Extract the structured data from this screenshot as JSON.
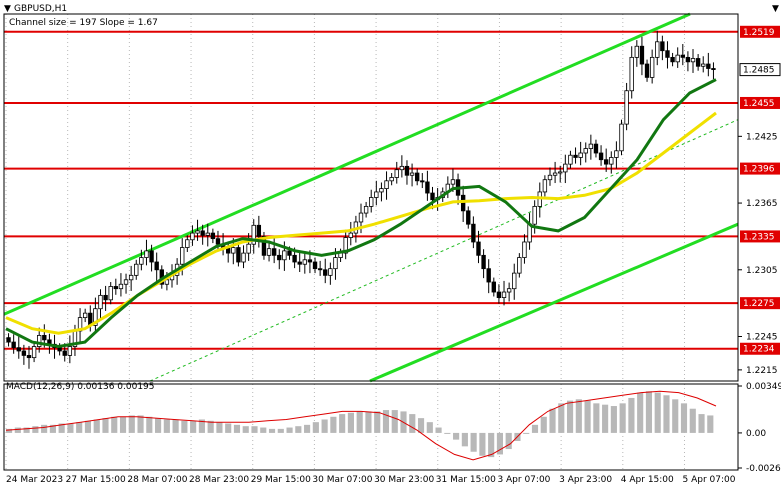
{
  "chart_data": {
    "type": "candlestick",
    "symbol_timeframe": "GBPUSD,H1",
    "channel_info": "Channel size = 197 Slope = 1.67",
    "y_axis": {
      "ylim": [
        1.2205,
        1.2535
      ],
      "ticks": [
        "1.2519",
        "1.2485",
        "1.2455",
        "1.2425",
        "1.2396",
        "1.2365",
        "1.2335",
        "1.2305",
        "1.2275",
        "1.2245",
        "1.2234",
        "1.2215"
      ]
    },
    "x_ticks": [
      "24 Mar 2023",
      "27 Mar 15:00",
      "28 Mar 07:00",
      "28 Mar 23:00",
      "29 Mar 15:00",
      "30 Mar 07:00",
      "30 Mar 23:00",
      "31 Mar 15:00",
      "3 Apr 07:00",
      "3 Apr 23:00",
      "4 Apr 15:00",
      "5 Apr 07:00"
    ],
    "levels": [
      {
        "value": 1.2519,
        "label": "1.2519"
      },
      {
        "value": 1.2455,
        "label": "1.2455"
      },
      {
        "value": 1.2396,
        "label": "1.2396"
      },
      {
        "value": 1.2335,
        "label": "1.2335"
      },
      {
        "value": 1.2275,
        "label": "1.2275"
      },
      {
        "value": 1.2234,
        "label": "1.2234"
      }
    ],
    "current_price": "1.2485",
    "close_series": [
      1.224,
      1.2235,
      1.2232,
      1.2228,
      1.2226,
      1.2236,
      1.2246,
      1.2242,
      1.2238,
      1.2235,
      1.2232,
      1.2228,
      1.2236,
      1.225,
      1.2262,
      1.2266,
      1.2255,
      1.227,
      1.2282,
      1.2278,
      1.229,
      1.2288,
      1.2292,
      1.2296,
      1.23,
      1.231,
      1.2316,
      1.2322,
      1.2312,
      1.2305,
      1.2292,
      1.2296,
      1.23,
      1.231,
      1.2325,
      1.2332,
      1.2338,
      1.234,
      1.2336,
      1.2338,
      1.2333,
      1.2328,
      1.2325,
      1.232,
      1.2325,
      1.2312,
      1.232,
      1.2328,
      1.2345,
      1.2335,
      1.2318,
      1.2324,
      1.2318,
      1.2314,
      1.2322,
      1.2318,
      1.2312,
      1.231,
      1.2314,
      1.2312,
      1.2306,
      1.2305,
      1.23,
      1.2306,
      1.2316,
      1.232,
      1.2334,
      1.2338,
      1.2348,
      1.2356,
      1.2362,
      1.237,
      1.2375,
      1.2378,
      1.2385,
      1.2388,
      1.2395,
      1.2398,
      1.239,
      1.2392,
      1.2385,
      1.2384,
      1.2374,
      1.2368,
      1.237,
      1.2375,
      1.2382,
      1.2386,
      1.2372,
      1.2358,
      1.2346,
      1.233,
      1.2318,
      1.2306,
      1.2294,
      1.2285,
      1.228,
      1.2285,
      1.2288,
      1.2302,
      1.2316,
      1.233,
      1.2346,
      1.2362,
      1.2375,
      1.2386,
      1.239,
      1.2392,
      1.2393,
      1.24,
      1.2408,
      1.2406,
      1.241,
      1.2414,
      1.2418,
      1.241,
      1.2404,
      1.24,
      1.2406,
      1.2412,
      1.2436,
      1.2466,
      1.2496,
      1.2506,
      1.249,
      1.2478,
      1.2496,
      1.251,
      1.2502,
      1.2496,
      1.2492,
      1.2498,
      1.2496,
      1.2492,
      1.2495,
      1.2488,
      1.249,
      1.2486,
      1.2485
    ],
    "ma_green": [
      1.2252,
      1.224,
      1.2236,
      1.224,
      1.2262,
      1.2282,
      1.2298,
      1.2312,
      1.2326,
      1.2333,
      1.233,
      1.2322,
      1.2318,
      1.2322,
      1.2332,
      1.2346,
      1.2362,
      1.2378,
      1.238,
      1.2366,
      1.2344,
      1.234,
      1.2352,
      1.2378,
      1.2404,
      1.244,
      1.2464,
      1.2476
    ],
    "ma_yellow": [
      1.2262,
      1.2252,
      1.2248,
      1.2252,
      1.2266,
      1.2282,
      1.2296,
      1.231,
      1.2322,
      1.233,
      1.2334,
      1.2336,
      1.2338,
      1.234,
      1.2346,
      1.2353,
      1.236,
      1.2366,
      1.2367,
      1.2369,
      1.237,
      1.2369,
      1.2372,
      1.2378,
      1.2392,
      1.241,
      1.2428,
      1.2446
    ],
    "macd": {
      "label": "MACD(12,26,9) 0.00136 0.00195",
      "ylim": [
        -0.00261,
        0.00349
      ],
      "ticks": [
        "0.00349",
        "0.00",
        "-0.00261"
      ],
      "histogram": [
        0.0003,
        0.0004,
        0.0004,
        0.0005,
        0.0006,
        0.0006,
        0.0007,
        0.0007,
        0.0008,
        0.0009,
        0.001,
        0.0011,
        0.0012,
        0.0012,
        0.0013,
        0.0013,
        0.0012,
        0.0011,
        0.001,
        0.001,
        0.0009,
        0.0009,
        0.001,
        0.0009,
        0.0008,
        0.0007,
        0.0006,
        0.0005,
        0.0005,
        0.0004,
        0.0003,
        0.0003,
        0.0004,
        0.0005,
        0.0006,
        0.0008,
        0.001,
        0.0012,
        0.0014,
        0.0015,
        0.0016,
        0.0016,
        0.0016,
        0.0017,
        0.0017,
        0.0016,
        0.0014,
        0.0011,
        0.0008,
        0.0004,
        0.0,
        -0.0005,
        -0.001,
        -0.0014,
        -0.0017,
        -0.0018,
        -0.0016,
        -0.0012,
        -0.0006,
        0.0,
        0.0006,
        0.0012,
        0.0018,
        0.0022,
        0.0024,
        0.0025,
        0.0024,
        0.0022,
        0.0021,
        0.002,
        0.0022,
        0.0026,
        0.003,
        0.0031,
        0.003,
        0.0028,
        0.0025,
        0.0022,
        0.0018,
        0.0014,
        0.0013
      ],
      "signal": [
        0.0002,
        0.0003,
        0.0004,
        0.0006,
        0.0008,
        0.001,
        0.0012,
        0.0012,
        0.0011,
        0.001,
        0.0009,
        0.0008,
        0.0008,
        0.0008,
        0.0009,
        0.001,
        0.0012,
        0.0014,
        0.0016,
        0.0016,
        0.0015,
        0.001,
        0.0002,
        -0.0008,
        -0.0016,
        -0.002,
        -0.0016,
        -0.0008,
        0.0006,
        0.0016,
        0.0022,
        0.0024,
        0.0026,
        0.0028,
        0.003,
        0.0031,
        0.003,
        0.0026,
        0.002
      ]
    }
  }
}
